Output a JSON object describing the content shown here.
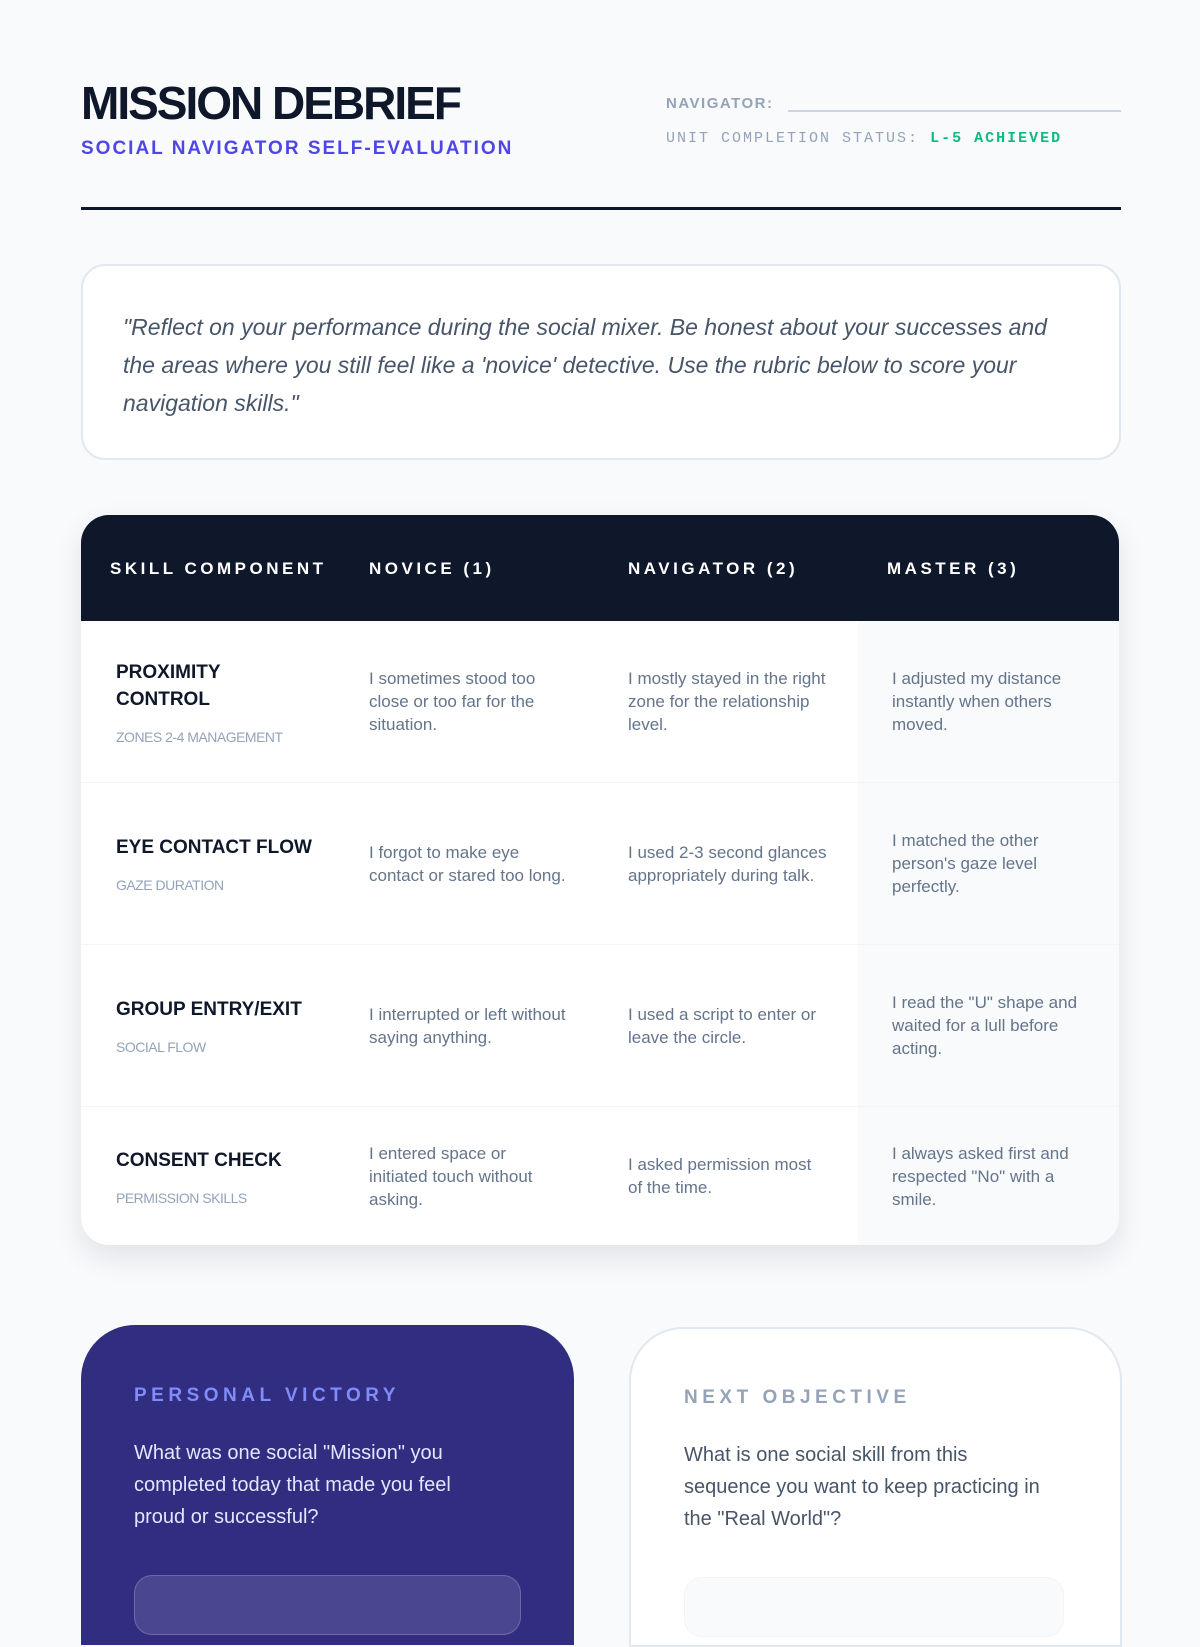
{
  "header": {
    "title": "MISSION DEBRIEF",
    "subtitle": "SOCIAL NAVIGATOR SELF-EVALUATION",
    "navigator_label": "NAVIGATOR:",
    "navigator_value": "",
    "status_label": "UNIT COMPLETION STATUS:",
    "status_value": "L-5 ACHIEVED",
    "status_color": "#10b981"
  },
  "quote": "\"Reflect on your performance during the social mixer. Be honest about your successes and the areas where you still feel like a 'novice' detective. Use the rubric below to score your navigation skills.\"",
  "rubric": {
    "columns": [
      "SKILL COMPONENT",
      "NOVICE (1)",
      "NAVIGATOR (2)",
      "MASTER (3)"
    ],
    "rows": [
      {
        "skill": "PROXIMITY CONTROL",
        "sub": "ZONES 2-4 MANAGEMENT",
        "novice": "I sometimes stood too close or too far for the situation.",
        "navigator": "I mostly stayed in the right zone for the relationship level.",
        "master": "I adjusted my distance instantly when others moved."
      },
      {
        "skill": "EYE CONTACT FLOW",
        "sub": "GAZE DURATION",
        "novice": "I forgot to make eye contact or stared too long.",
        "navigator": "I used 2-3 second glances appropriately during talk.",
        "master": "I matched the other person's gaze level perfectly."
      },
      {
        "skill": "GROUP ENTRY/EXIT",
        "sub": "SOCIAL FLOW",
        "novice": "I interrupted or left without saying anything.",
        "navigator": "I used a script to enter or leave the circle.",
        "master": "I read the \"U\" shape and waited for a lull before acting."
      },
      {
        "skill": "CONSENT CHECK",
        "sub": "PERMISSION SKILLS",
        "novice": "I entered space or initiated touch without asking.",
        "navigator": "I asked permission most of the time.",
        "master": "I always asked first and respected \"No\" with a smile."
      }
    ]
  },
  "victory": {
    "title": "PERSONAL VICTORY",
    "question": "What was one social \"Mission\" you completed today that made you feel proud or successful?",
    "answer": ""
  },
  "objective": {
    "title": "NEXT OBJECTIVE",
    "question": "What is one social skill from this sequence you want to keep practicing in the \"Real World\"?",
    "answer": ""
  }
}
